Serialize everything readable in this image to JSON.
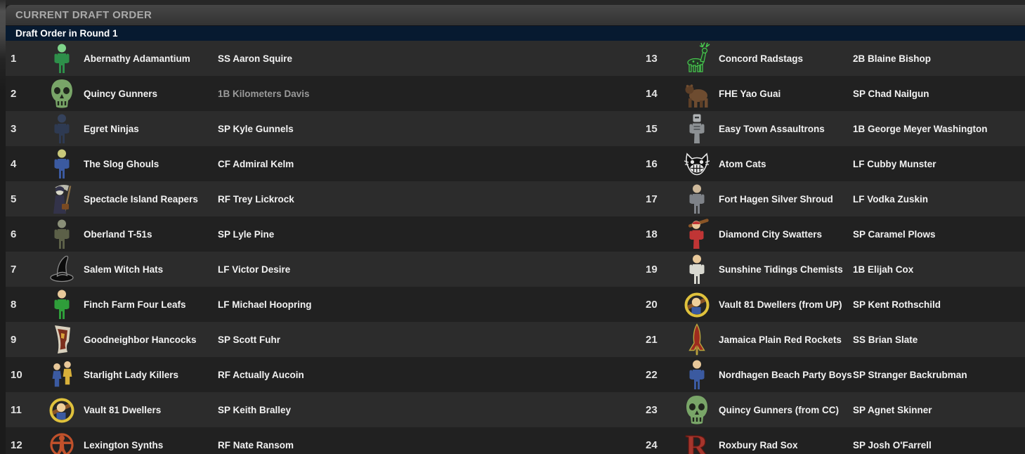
{
  "header": {
    "title": "CURRENT DRAFT ORDER"
  },
  "subheader": {
    "label": "Draft Order in Round 1"
  },
  "colors": {
    "header_bar": "#3c3c3c",
    "header_title_text": "#a9a9a9",
    "subheader_bar": "#071a30",
    "row_light": "#2c2c2c",
    "row_dark": "#212121",
    "text_primary": "#f2f2f2",
    "text_dimmed_player": "#9a9a9a"
  },
  "picks": [
    {
      "pick": 1,
      "team": "Abernathy Adamantium",
      "player": "SS Aaron Squire",
      "dimmed": false,
      "icon": {
        "name": "glowing-vault-boy-icon",
        "type": "person",
        "c1": "#2e8f4a",
        "c2": "#7fd48a"
      }
    },
    {
      "pick": 2,
      "team": "Quincy Gunners",
      "player": "1B Kilometers Davis",
      "dimmed": true,
      "icon": {
        "name": "green-skull-icon",
        "type": "skull",
        "c1": "#79a568",
        "c2": "#1f2a1c"
      }
    },
    {
      "pick": 3,
      "team": "Egret Ninjas",
      "player": "SP Kyle Gunnels",
      "dimmed": false,
      "icon": {
        "name": "ninja-icon",
        "type": "person",
        "c1": "#2e3a52",
        "c2": "#35425c"
      }
    },
    {
      "pick": 4,
      "team": "The Slog Ghouls",
      "player": "CF Admiral Kelm",
      "dimmed": false,
      "icon": {
        "name": "ghoul-vault-boy-icon",
        "type": "person",
        "c1": "#3b5aa0",
        "c2": "#c8c87a"
      }
    },
    {
      "pick": 5,
      "team": "Spectacle Island Reapers",
      "player": "RF Trey Lickrock",
      "dimmed": false,
      "icon": {
        "name": "grim-reaper-icon",
        "type": "reaper",
        "c1": "#33334a",
        "c2": "#d8d8c8"
      }
    },
    {
      "pick": 6,
      "team": "Oberland T-51s",
      "player": "SP Lyle Pine",
      "dimmed": false,
      "icon": {
        "name": "power-armor-icon",
        "type": "person",
        "c1": "#5c6048",
        "c2": "#8a8f78"
      }
    },
    {
      "pick": 7,
      "team": "Salem Witch Hats",
      "player": "LF Victor Desire",
      "dimmed": false,
      "icon": {
        "name": "witch-hat-icon",
        "type": "hat",
        "c1": "#0c0c0c",
        "c2": "#8a8a8a"
      }
    },
    {
      "pick": 8,
      "team": "Finch Farm Four Leafs",
      "player": "LF Michael Hoopring",
      "dimmed": false,
      "icon": {
        "name": "leprechaun-icon",
        "type": "person",
        "c1": "#2f9e3a",
        "c2": "#e8c89a"
      }
    },
    {
      "pick": 9,
      "team": "Goodneighbor Hancocks",
      "player": "SP Scott Fuhr",
      "dimmed": false,
      "icon": {
        "name": "hancock-flag-icon",
        "type": "flag",
        "c1": "#d8d0bd",
        "c2": "#7c2f1d"
      }
    },
    {
      "pick": 10,
      "team": "Starlight Lady Killers",
      "player": "RF Actually Aucoin",
      "dimmed": false,
      "icon": {
        "name": "lady-killer-duo-icon",
        "type": "duo",
        "c1": "#d8b03a",
        "c2": "#3b5aa0"
      }
    },
    {
      "pick": 11,
      "team": "Vault 81 Dwellers",
      "player": "SP Keith Bralley",
      "dimmed": false,
      "icon": {
        "name": "vault-81-circle-icon",
        "type": "vaultcircle",
        "c1": "#e0c23c",
        "c2": "#efcf9a"
      }
    },
    {
      "pick": 12,
      "team": "Lexington Synths",
      "player": "RF Nate Ransom",
      "dimmed": false,
      "icon": {
        "name": "synth-logo-icon",
        "type": "synth",
        "c1": "#c1512b",
        "c2": "#c1512b"
      }
    },
    {
      "pick": 13,
      "team": "Concord Radstags",
      "player": "2B Blaine Bishop",
      "dimmed": false,
      "icon": {
        "name": "radstag-icon",
        "type": "stag",
        "c1": "#233a26",
        "c2": "#48c94f"
      }
    },
    {
      "pick": 14,
      "team": "FHE Yao Guai",
      "player": "SP Chad Nailgun",
      "dimmed": false,
      "icon": {
        "name": "yao-guai-icon",
        "type": "bear",
        "c1": "#6e4c30",
        "c2": "#5d3f27"
      }
    },
    {
      "pick": 15,
      "team": "Easy Town Assaultrons",
      "player": "1B George Meyer Washington",
      "dimmed": false,
      "icon": {
        "name": "assaultron-icon",
        "type": "robot",
        "c1": "#8c9093",
        "c2": "#b0b3b5"
      }
    },
    {
      "pick": 16,
      "team": "Atom Cats",
      "player": "LF Cubby Munster",
      "dimmed": false,
      "icon": {
        "name": "atom-cat-icon",
        "type": "cat",
        "c1": "#101010",
        "c2": "#e6e6e6"
      }
    },
    {
      "pick": 17,
      "team": "Fort Hagen Silver Shroud",
      "player": "LF Vodka Zuskin",
      "dimmed": false,
      "icon": {
        "name": "silver-shroud-icon",
        "type": "person",
        "c1": "#7e8288",
        "c2": "#cdb89a"
      }
    },
    {
      "pick": 18,
      "team": "Diamond City Swatters",
      "player": "SP Caramel Plows",
      "dimmed": false,
      "icon": {
        "name": "swatter-batter-icon",
        "type": "batter",
        "c1": "#c03535",
        "c2": "#e8c89a"
      }
    },
    {
      "pick": 19,
      "team": "Sunshine Tidings Chemists",
      "player": "1B Elijah Cox",
      "dimmed": false,
      "icon": {
        "name": "chemist-vault-boy-icon",
        "type": "person",
        "c1": "#d8d8d0",
        "c2": "#e8c89a"
      }
    },
    {
      "pick": 20,
      "team": "Vault 81 Dwellers (from UP)",
      "player": "SP Kent Rothschild",
      "dimmed": false,
      "icon": {
        "name": "vault-81-circle-icon",
        "type": "vaultcircle",
        "c1": "#e0c23c",
        "c2": "#efcf9a"
      }
    },
    {
      "pick": 21,
      "team": "Jamaica Plain Red Rockets",
      "player": "SS Brian Slate",
      "dimmed": false,
      "icon": {
        "name": "red-rocket-icon",
        "type": "rocket",
        "c1": "#9e2b1e",
        "c2": "#b8a53e"
      }
    },
    {
      "pick": 22,
      "team": "Nordhagen Beach Party Boys",
      "player": "SP Stranger Backrubman",
      "dimmed": false,
      "icon": {
        "name": "party-boy-icon",
        "type": "person",
        "c1": "#3b5aa0",
        "c2": "#e8c89a"
      }
    },
    {
      "pick": 23,
      "team": "Quincy Gunners (from CC)",
      "player": "SP Agnet Skinner",
      "dimmed": false,
      "icon": {
        "name": "green-skull-icon",
        "type": "skull",
        "c1": "#79a568",
        "c2": "#1f2a1c"
      }
    },
    {
      "pick": 24,
      "team": "Roxbury Rad Sox",
      "player": "SP Josh O'Farrell",
      "dimmed": false,
      "icon": {
        "name": "roxbury-r-icon",
        "type": "letterR",
        "c1": "#a6352c",
        "c2": "#5e1812"
      }
    }
  ]
}
